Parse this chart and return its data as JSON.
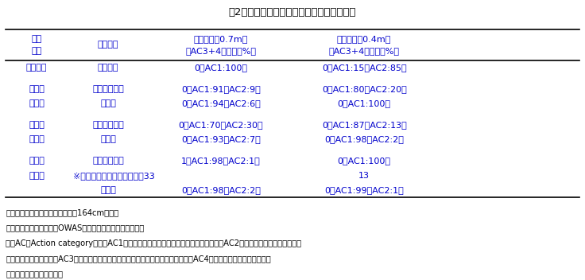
{
  "title": "表2　高設低段密植栽培トマトでの作業姿勢",
  "header_row1": [
    "作業\n位置",
    "作業種類",
    "高ベッド（0.7m）",
    "低ベッド（0.4m）"
  ],
  "header_row2": [
    "",
    "",
    "（AC3+4）割合（%）",
    "（AC3+4）割合（%）"
  ],
  "rows": [
    [
      "ベッド面",
      "定植作業",
      "0（AC1:100）",
      "0（AC1:15、AC2:85）"
    ],
    [
      "",
      "",
      "",
      ""
    ],
    [
      "１段果",
      "クリップ付け",
      "0（AC1:91、AC2:9）",
      "0（AC1:80、AC2:20）"
    ],
    [
      "房高さ",
      "芽かき",
      "0（AC1:94、AC2:6）",
      "0（AC1:100）"
    ],
    [
      "",
      "",
      "",
      ""
    ],
    [
      "２段果",
      "クリップ付け",
      "0（AC1:70、AC2:30）",
      "0（AC1:87、AC2:13）"
    ],
    [
      "房高さ",
      "芽かき",
      "0（AC1:93、AC2:7）",
      "0（AC1:98、AC2:2）"
    ],
    [
      "",
      "",
      "",
      ""
    ],
    [
      "３段果",
      "クリップ付け",
      "1（AC1:98、AC2:1）",
      "0（AC1:100）"
    ],
    [
      "房高さ",
      "※上肢で両腕上げ姿勢割合　33",
      "",
      "13"
    ],
    [
      "",
      "芽かき",
      "0（AC1:98、AC2:2）",
      "0（AC1:99、AC2:1）"
    ]
  ],
  "notes": [
    "注：調査対象作業者は表１の身長164cmの女性",
    "　　解析には中央農研のOWAS法解析サポートソフトを利用",
    "　　ACはAction categoryの略。AC1は「筋骨格系負担は問題ない。改善は不要」、AC2は「筋骨格系に有害。近いう",
    "　　ちに改善すべき」、AC3は「筋骨格系に有害。できるだけ早期に改善すべき」、AC4は「筋骨格系に非常に有害。",
    "　　ただちに改善すべき」"
  ],
  "text_color": "#0000CC",
  "border_color": "#000000",
  "bg_color": "#FFFFFF",
  "note_color": "#000000",
  "title_color": "#000000"
}
